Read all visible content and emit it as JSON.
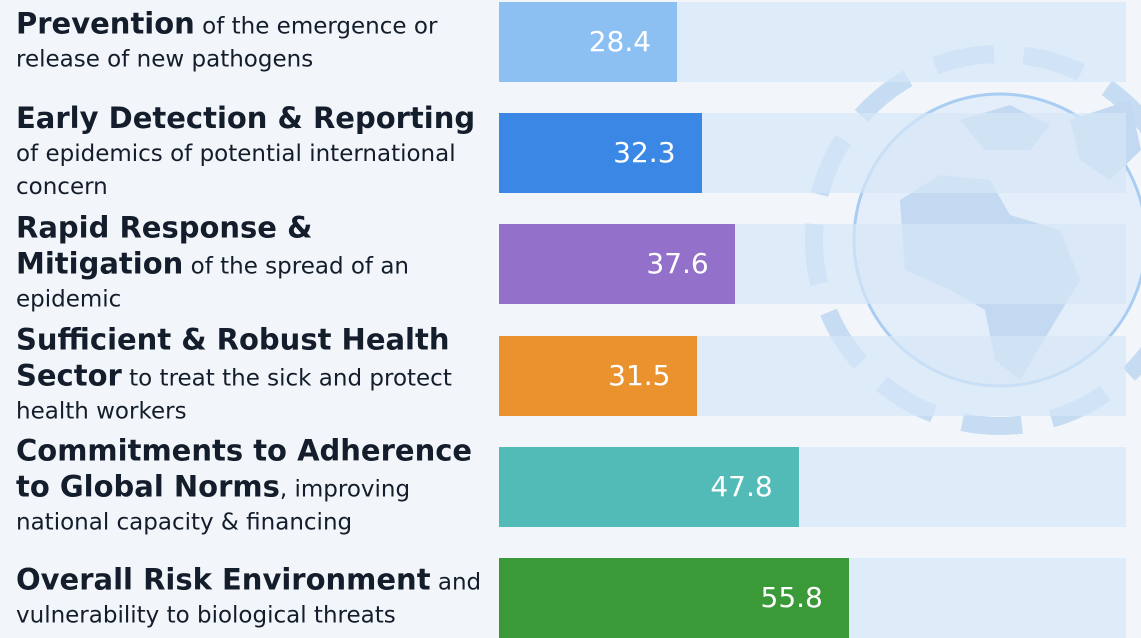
{
  "chart_data": {
    "type": "bar",
    "orientation": "horizontal",
    "categories": [
      "Prevention",
      "Early Detection & Reporting",
      "Rapid Response & Mitigation",
      "Sufficient & Robust Health Sector",
      "Commitments to Adherence to Global Norms",
      "Overall Risk Environment"
    ],
    "descriptions": [
      "of the emergence or release of new pathogens",
      "of epidemics of potential international concern",
      "of the spread of an epidemic",
      "to treat the sick and protect health workers",
      ", improving national capacity & financing",
      "and vulnerability to biological threats"
    ],
    "values": [
      28.4,
      32.3,
      37.6,
      31.5,
      47.8,
      55.8
    ],
    "colors": [
      "#8cc0f2",
      "#3a87e6",
      "#9370c9",
      "#ea922e",
      "#52bab7",
      "#3a9a37"
    ],
    "xlim": [
      0,
      100
    ]
  }
}
